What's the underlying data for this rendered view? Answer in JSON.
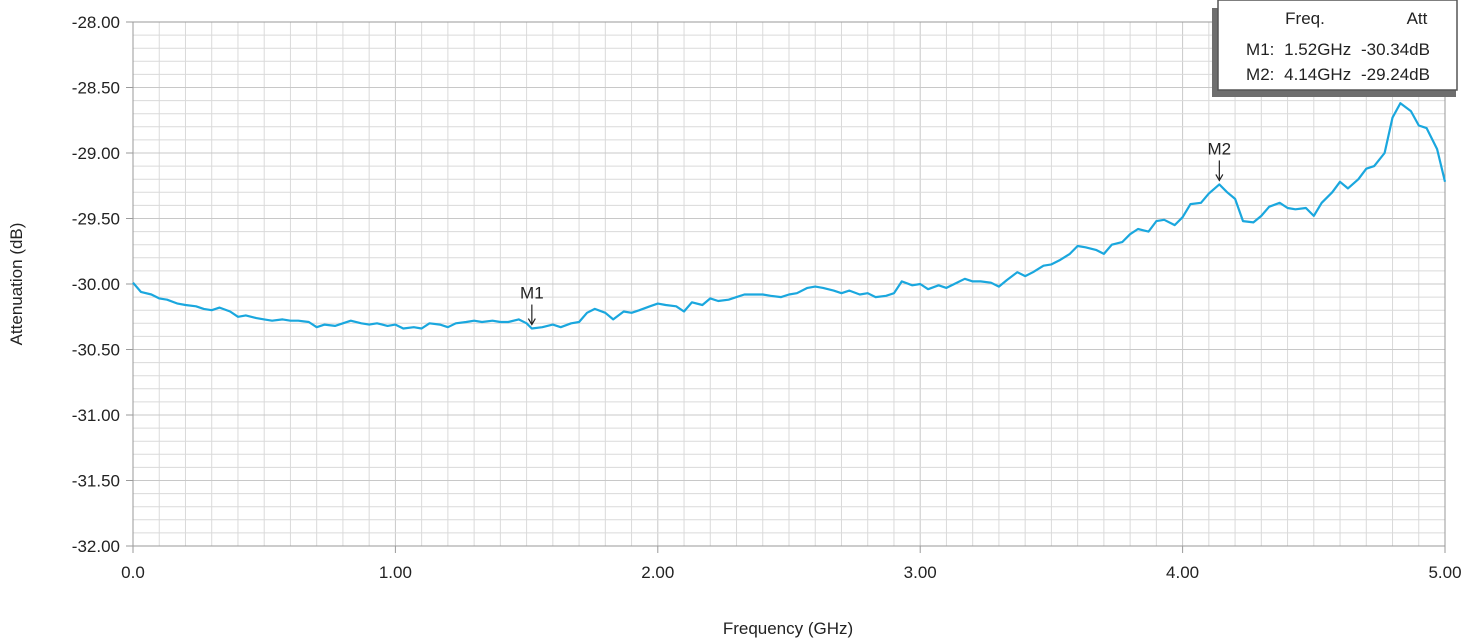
{
  "chart_data": {
    "type": "line",
    "title": "",
    "xlabel": "Frequency (GHz)",
    "ylabel": "Attenuation (dB)",
    "xlim": [
      0,
      5
    ],
    "ylim": [
      -32,
      -28
    ],
    "x_ticks": [
      "0.0",
      "1.00",
      "2.00",
      "3.00",
      "4.00",
      "5.00"
    ],
    "y_ticks": [
      "-28.00",
      "-28.50",
      "-29.00",
      "-29.50",
      "-30.00",
      "-30.50",
      "-31.00",
      "-31.50",
      "-32.00"
    ],
    "grid": true,
    "legend_placement": "top-right",
    "series_color": "#1aa7de",
    "series": [
      {
        "x": [
          0.0,
          0.03,
          0.07,
          0.1,
          0.13,
          0.17,
          0.2,
          0.24,
          0.27,
          0.3,
          0.33,
          0.37,
          0.4,
          0.43,
          0.47,
          0.5,
          0.53,
          0.57,
          0.6,
          0.63,
          0.67,
          0.7,
          0.73,
          0.77,
          0.8,
          0.83,
          0.87,
          0.9,
          0.93,
          0.97,
          1.0,
          1.03,
          1.07,
          1.1,
          1.13,
          1.17,
          1.2,
          1.23,
          1.27,
          1.3,
          1.33,
          1.37,
          1.4,
          1.43,
          1.47,
          1.5,
          1.52,
          1.56,
          1.6,
          1.63,
          1.67,
          1.7,
          1.73,
          1.76,
          1.8,
          1.83,
          1.87,
          1.9,
          1.93,
          1.97,
          2.0,
          2.03,
          2.07,
          2.1,
          2.13,
          2.17,
          2.2,
          2.23,
          2.27,
          2.3,
          2.33,
          2.37,
          2.4,
          2.43,
          2.47,
          2.5,
          2.53,
          2.57,
          2.6,
          2.63,
          2.67,
          2.7,
          2.73,
          2.77,
          2.8,
          2.83,
          2.87,
          2.9,
          2.93,
          2.97,
          3.0,
          3.03,
          3.07,
          3.1,
          3.13,
          3.17,
          3.2,
          3.23,
          3.27,
          3.3,
          3.33,
          3.37,
          3.4,
          3.43,
          3.47,
          3.5,
          3.53,
          3.57,
          3.6,
          3.63,
          3.67,
          3.7,
          3.73,
          3.77,
          3.8,
          3.83,
          3.87,
          3.9,
          3.93,
          3.97,
          4.0,
          4.03,
          4.07,
          4.1,
          4.14,
          4.17,
          4.2,
          4.23,
          4.27,
          4.3,
          4.33,
          4.37,
          4.4,
          4.43,
          4.47,
          4.5,
          4.53,
          4.57,
          4.6,
          4.63,
          4.67,
          4.7,
          4.73,
          4.77,
          4.8,
          4.83,
          4.87,
          4.9,
          4.93,
          4.97,
          5.0
        ],
        "values": [
          -29.99,
          -30.06,
          -30.08,
          -30.11,
          -30.12,
          -30.15,
          -30.16,
          -30.17,
          -30.19,
          -30.2,
          -30.18,
          -30.21,
          -30.25,
          -30.24,
          -30.26,
          -30.27,
          -30.28,
          -30.27,
          -30.28,
          -30.28,
          -30.29,
          -30.33,
          -30.31,
          -30.32,
          -30.3,
          -30.28,
          -30.3,
          -30.31,
          -30.3,
          -30.32,
          -30.31,
          -30.34,
          -30.33,
          -30.34,
          -30.3,
          -30.31,
          -30.33,
          -30.3,
          -30.29,
          -30.28,
          -30.29,
          -30.28,
          -30.29,
          -30.29,
          -30.27,
          -30.3,
          -30.34,
          -30.33,
          -30.31,
          -30.33,
          -30.3,
          -30.29,
          -30.22,
          -30.19,
          -30.22,
          -30.27,
          -30.21,
          -30.22,
          -30.2,
          -30.17,
          -30.15,
          -30.16,
          -30.17,
          -30.21,
          -30.14,
          -30.16,
          -30.11,
          -30.13,
          -30.12,
          -30.1,
          -30.08,
          -30.08,
          -30.08,
          -30.09,
          -30.1,
          -30.08,
          -30.07,
          -30.03,
          -30.02,
          -30.03,
          -30.05,
          -30.07,
          -30.05,
          -30.08,
          -30.07,
          -30.1,
          -30.09,
          -30.07,
          -29.98,
          -30.01,
          -30.0,
          -30.04,
          -30.01,
          -30.03,
          -30.0,
          -29.96,
          -29.98,
          -29.98,
          -29.99,
          -30.02,
          -29.97,
          -29.91,
          -29.94,
          -29.91,
          -29.86,
          -29.85,
          -29.82,
          -29.77,
          -29.71,
          -29.72,
          -29.74,
          -29.77,
          -29.7,
          -29.68,
          -29.62,
          -29.58,
          -29.6,
          -29.52,
          -29.51,
          -29.55,
          -29.49,
          -29.39,
          -29.38,
          -29.31,
          -29.24,
          -29.3,
          -29.35,
          -29.52,
          -29.53,
          -29.48,
          -29.41,
          -29.38,
          -29.42,
          -29.43,
          -29.42,
          -29.48,
          -29.38,
          -29.3,
          -29.22,
          -29.27,
          -29.2,
          -29.12,
          -29.1,
          -29.0,
          -28.73,
          -28.62,
          -28.68,
          -28.79,
          -28.81,
          -28.97,
          -29.22
        ]
      }
    ],
    "markers": [
      {
        "label": "M1",
        "x": 1.52,
        "y": -30.34
      },
      {
        "label": "M2",
        "x": 4.14,
        "y": -29.24
      }
    ],
    "legend": {
      "header_freq": "Freq.",
      "header_att": "Att",
      "rows": [
        {
          "label": "M1:",
          "freq": "1.52GHz",
          "att": "-30.34dB"
        },
        {
          "label": "M2:",
          "freq": "4.14GHz",
          "att": "-29.24dB"
        }
      ]
    }
  }
}
